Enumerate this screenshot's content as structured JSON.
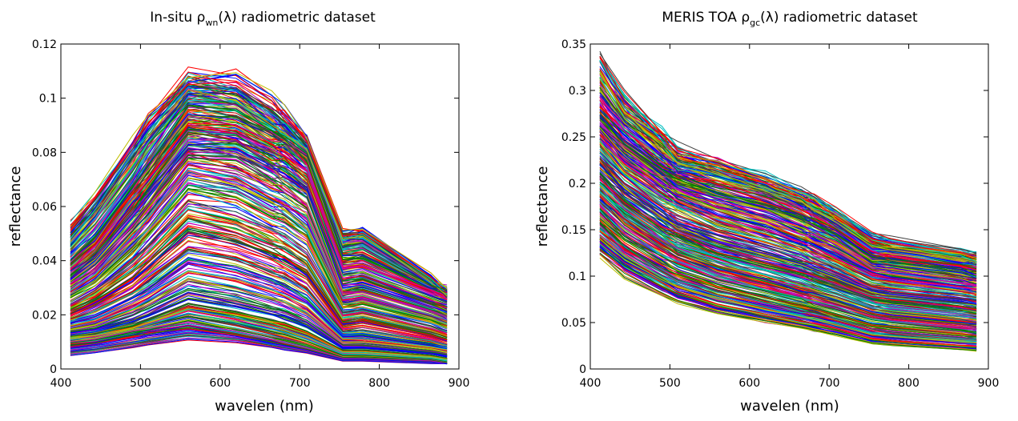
{
  "chart_data": [
    {
      "type": "line",
      "title_prefix": "In-situ ",
      "title_symbol": "ρ",
      "title_subscript": "wn",
      "title_suffix": "(λ) radiometric dataset",
      "xlabel": "wavelen (nm)",
      "ylabel": "reflectance",
      "xlim": [
        400,
        900
      ],
      "ylim": [
        0,
        0.12
      ],
      "xticks": [
        400,
        500,
        600,
        700,
        800,
        900
      ],
      "yticks": [
        0,
        0.02,
        0.04,
        0.06,
        0.08,
        0.1,
        0.12
      ],
      "ytick_labels": [
        "0",
        "0.02",
        "0.04",
        "0.06",
        "0.08",
        "0.1",
        "0.12"
      ],
      "grid": false,
      "x": [
        412,
        443,
        490,
        510,
        560,
        620,
        665,
        681,
        709,
        754,
        779,
        865,
        885
      ],
      "series_count": 420,
      "colors": [
        "#0000ff",
        "#008000",
        "#ff0000",
        "#00bfbf",
        "#bf00bf",
        "#bfbf00",
        "#3f3f3f"
      ],
      "series": [
        {
          "values": [
            0.053,
            0.063,
            0.083,
            0.091,
            0.105,
            0.106,
            0.098,
            0.094,
            0.084,
            0.049,
            0.05,
            0.034,
            0.028
          ]
        },
        {
          "values": [
            0.047,
            0.057,
            0.077,
            0.086,
            0.103,
            0.099,
            0.09,
            0.087,
            0.081,
            0.048,
            0.049,
            0.032,
            0.027
          ]
        },
        {
          "values": [
            0.04,
            0.049,
            0.067,
            0.075,
            0.097,
            0.096,
            0.088,
            0.086,
            0.08,
            0.043,
            0.044,
            0.031,
            0.029
          ]
        },
        {
          "values": [
            0.037,
            0.045,
            0.063,
            0.07,
            0.088,
            0.087,
            0.081,
            0.079,
            0.073,
            0.037,
            0.038,
            0.028,
            0.026
          ]
        },
        {
          "values": [
            0.033,
            0.04,
            0.056,
            0.063,
            0.083,
            0.081,
            0.074,
            0.072,
            0.066,
            0.03,
            0.031,
            0.023,
            0.021
          ]
        },
        {
          "values": [
            0.029,
            0.035,
            0.049,
            0.056,
            0.074,
            0.071,
            0.064,
            0.062,
            0.056,
            0.026,
            0.027,
            0.02,
            0.018
          ]
        },
        {
          "values": [
            0.024,
            0.029,
            0.04,
            0.046,
            0.062,
            0.058,
            0.052,
            0.05,
            0.044,
            0.021,
            0.022,
            0.016,
            0.014
          ]
        },
        {
          "values": [
            0.02,
            0.024,
            0.032,
            0.037,
            0.05,
            0.046,
            0.041,
            0.039,
            0.034,
            0.016,
            0.017,
            0.012,
            0.01
          ]
        },
        {
          "values": [
            0.016,
            0.018,
            0.024,
            0.027,
            0.036,
            0.033,
            0.029,
            0.027,
            0.023,
            0.011,
            0.011,
            0.008,
            0.007
          ]
        },
        {
          "values": [
            0.012,
            0.013,
            0.016,
            0.018,
            0.024,
            0.021,
            0.018,
            0.017,
            0.014,
            0.007,
            0.007,
            0.005,
            0.004
          ]
        },
        {
          "values": [
            0.01,
            0.011,
            0.014,
            0.015,
            0.017,
            0.014,
            0.011,
            0.01,
            0.008,
            0.004,
            0.004,
            0.003,
            0.002
          ]
        },
        {
          "values": [
            0.005,
            0.006,
            0.008,
            0.009,
            0.011,
            0.01,
            0.008,
            0.007,
            0.006,
            0.003,
            0.003,
            0.002,
            0.002
          ]
        }
      ]
    },
    {
      "type": "line",
      "title_prefix": "MERIS TOA ",
      "title_symbol": "ρ",
      "title_subscript": "gc",
      "title_suffix": "(λ) radiometric dataset",
      "xlabel": "wavelen (nm)",
      "ylabel": "reflectance",
      "xlim": [
        400,
        900
      ],
      "ylim": [
        0,
        0.35
      ],
      "xticks": [
        400,
        500,
        600,
        700,
        800,
        900
      ],
      "yticks": [
        0,
        0.05,
        0.1,
        0.15,
        0.2,
        0.25,
        0.3,
        0.35
      ],
      "ytick_labels": [
        "0",
        "0.05",
        "0.1",
        "0.15",
        "0.2",
        "0.25",
        "0.3",
        "0.35"
      ],
      "grid": false,
      "x": [
        412,
        443,
        490,
        510,
        560,
        620,
        665,
        681,
        709,
        754,
        779,
        865,
        885
      ],
      "series_count": 420,
      "colors": [
        "#0000ff",
        "#008000",
        "#ff0000",
        "#00bfbf",
        "#bf00bf",
        "#bfbf00",
        "#3f3f3f"
      ],
      "series": [
        {
          "values": [
            0.335,
            0.29,
            0.25,
            0.23,
            0.215,
            0.2,
            0.185,
            0.178,
            0.165,
            0.14,
            0.135,
            0.125,
            0.12
          ]
        },
        {
          "values": [
            0.3,
            0.265,
            0.235,
            0.222,
            0.21,
            0.195,
            0.18,
            0.172,
            0.158,
            0.132,
            0.128,
            0.118,
            0.115
          ]
        },
        {
          "values": [
            0.27,
            0.242,
            0.215,
            0.204,
            0.19,
            0.176,
            0.162,
            0.156,
            0.145,
            0.12,
            0.116,
            0.105,
            0.1
          ]
        },
        {
          "values": [
            0.25,
            0.222,
            0.193,
            0.182,
            0.165,
            0.15,
            0.137,
            0.131,
            0.12,
            0.1,
            0.096,
            0.088,
            0.085
          ]
        },
        {
          "values": [
            0.22,
            0.193,
            0.165,
            0.155,
            0.138,
            0.124,
            0.113,
            0.108,
            0.099,
            0.084,
            0.08,
            0.073,
            0.07
          ]
        },
        {
          "values": [
            0.2,
            0.174,
            0.147,
            0.137,
            0.121,
            0.107,
            0.097,
            0.093,
            0.085,
            0.071,
            0.068,
            0.06,
            0.058
          ]
        },
        {
          "values": [
            0.18,
            0.155,
            0.129,
            0.12,
            0.104,
            0.091,
            0.081,
            0.077,
            0.07,
            0.058,
            0.055,
            0.048,
            0.046
          ]
        },
        {
          "values": [
            0.16,
            0.136,
            0.112,
            0.103,
            0.089,
            0.077,
            0.068,
            0.064,
            0.058,
            0.047,
            0.045,
            0.038,
            0.036
          ]
        },
        {
          "values": [
            0.14,
            0.118,
            0.096,
            0.088,
            0.075,
            0.064,
            0.056,
            0.053,
            0.047,
            0.037,
            0.035,
            0.029,
            0.028
          ]
        },
        {
          "values": [
            0.125,
            0.103,
            0.082,
            0.074,
            0.062,
            0.052,
            0.045,
            0.042,
            0.037,
            0.028,
            0.026,
            0.021,
            0.02
          ]
        }
      ]
    }
  ]
}
